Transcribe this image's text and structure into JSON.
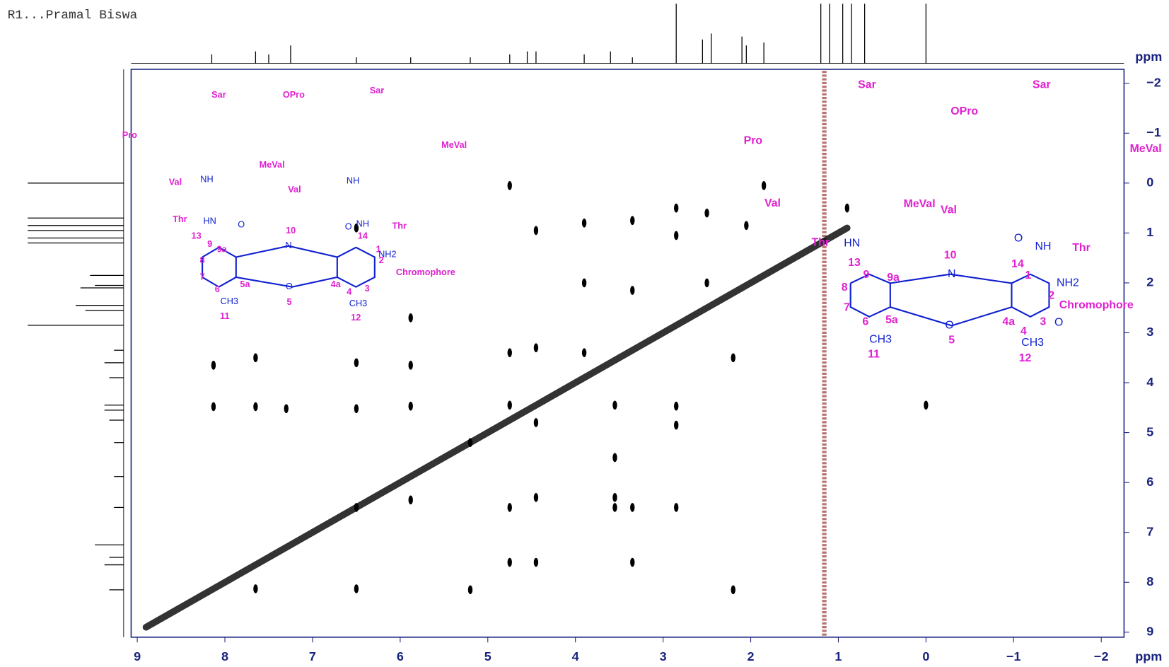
{
  "chart_data": {
    "type": "nmr2d",
    "title": "R1...Pramal Biswa",
    "xlabel": "ppm",
    "ylabel": "ppm",
    "xlim": [
      9.07,
      -2.26
    ],
    "ylim": [
      -2.28,
      9.1
    ],
    "xticks": [
      9,
      8,
      7,
      6,
      5,
      4,
      3,
      2,
      1,
      0,
      {
        "value": -1,
        "label": "−1"
      },
      {
        "value": -2,
        "label": "−2"
      }
    ],
    "yticks": [
      {
        "value": -2,
        "label": "−2"
      },
      {
        "value": -1,
        "label": "−1"
      },
      0,
      1,
      2,
      3,
      4,
      5,
      6,
      7,
      8,
      9
    ],
    "color": "#000000",
    "diagonal": {
      "x": [
        8.9,
        0.9
      ],
      "y": [
        8.9,
        0.9
      ]
    },
    "peaks": {
      "x": [
        8.13,
        8.13,
        7.65,
        7.65,
        7.65,
        7.3,
        6.5,
        6.5,
        6.5,
        6.5,
        6.5,
        5.88,
        5.88,
        5.88,
        5.88,
        5.2,
        5.2,
        4.75,
        4.75,
        4.75,
        4.75,
        4.75,
        4.45,
        4.45,
        4.45,
        4.45,
        4.45,
        3.9,
        3.9,
        3.9,
        3.55,
        3.55,
        3.55,
        3.55,
        3.35,
        3.35,
        3.35,
        3.35,
        2.85,
        2.85,
        2.85,
        2.85,
        2.85,
        2.5,
        2.5,
        2.2,
        2.2,
        2.05,
        1.85,
        0.9,
        0.0
      ],
      "y": [
        3.65,
        4.48,
        4.48,
        3.5,
        8.13,
        4.52,
        0.9,
        3.6,
        4.52,
        6.5,
        8.13,
        3.65,
        2.7,
        4.47,
        6.35,
        5.2,
        8.15,
        0.05,
        3.4,
        4.45,
        6.5,
        7.6,
        0.95,
        3.3,
        4.8,
        6.3,
        7.6,
        0.8,
        2.0,
        3.4,
        4.45,
        5.5,
        6.3,
        6.5,
        0.75,
        2.15,
        6.5,
        7.6,
        0.5,
        1.05,
        4.47,
        4.85,
        6.5,
        0.6,
        2.0,
        3.5,
        8.15,
        0.85,
        0.05,
        0.5,
        4.45
      ]
    },
    "projection": {
      "x": [
        8.15,
        7.65,
        7.5,
        7.25,
        6.5,
        5.88,
        5.2,
        4.75,
        4.55,
        4.45,
        3.9,
        3.6,
        3.35,
        2.85,
        2.55,
        2.45,
        2.1,
        2.05,
        1.85,
        1.2,
        1.1,
        0.95,
        0.85,
        0.7,
        0.0
      ],
      "heights": [
        0.15,
        0.2,
        0.15,
        0.3,
        0.1,
        0.1,
        0.1,
        0.15,
        0.2,
        0.2,
        0.15,
        0.2,
        0.1,
        1.0,
        0.4,
        0.5,
        0.45,
        0.3,
        0.35,
        1.0,
        1.0,
        1.0,
        1.0,
        1.0,
        1.0
      ]
    },
    "residue_labels": {
      "color": "#e020d0",
      "texts": [
        "Sar",
        "Pro",
        "OPro",
        "Sar",
        "MeVal",
        "MeVal",
        "Val",
        "Val",
        "Thr",
        "Thr",
        "Chromophore",
        "10",
        "13",
        "9",
        "9a",
        "14",
        "1",
        "2",
        "8",
        "7",
        "6",
        "5a",
        "4a",
        "3",
        "4",
        "5",
        "11",
        "12",
        "Sar",
        "Sar",
        "OPro",
        "Pro",
        "MeVal",
        "MeVal",
        "Val",
        "Val",
        "Thr",
        "Thr",
        "Chromophore",
        "10",
        "13",
        "9",
        "9a",
        "14",
        "1",
        "2",
        "8",
        "7",
        "6",
        "5a",
        "4a",
        "3",
        "4",
        "5",
        "11",
        "12"
      ]
    },
    "atom_labels": {
      "color": "#1020d0",
      "texts": [
        "NH2",
        "CH3",
        "CH3",
        "O",
        "O",
        "N",
        "O",
        "HN",
        "NH",
        "NH",
        "NH",
        "NH2",
        "CH3",
        "CH3",
        "N",
        "O",
        "HN",
        "NH",
        "O",
        "O"
      ]
    }
  }
}
